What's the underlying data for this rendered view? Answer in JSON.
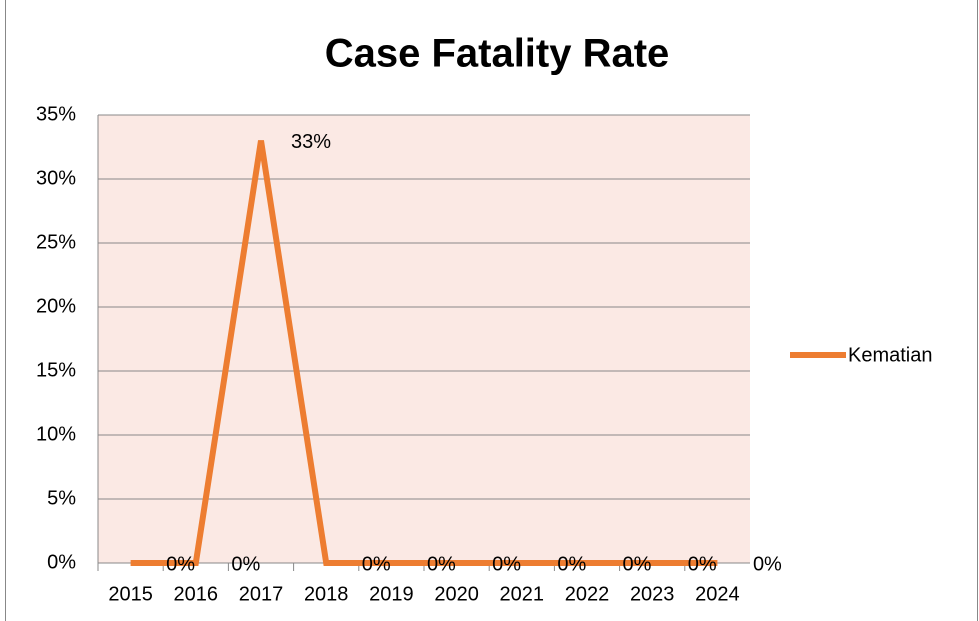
{
  "chart_data": {
    "type": "line",
    "title": "Case Fatality Rate",
    "categories": [
      "2015",
      "2016",
      "2017",
      "2018",
      "2019",
      "2020",
      "2021",
      "2022",
      "2023",
      "2024"
    ],
    "series": [
      {
        "name": "Kematian",
        "color": "#ed7d31",
        "values": [
          0,
          0,
          33,
          0,
          0,
          0,
          0,
          0,
          0,
          0
        ],
        "value_labels": [
          "0%",
          "0%",
          "33%",
          "0%",
          "0%",
          "0%",
          "0%",
          "0%",
          "0%",
          "0%"
        ]
      }
    ],
    "ylim": [
      0,
      35
    ],
    "yticks": [
      {
        "value": 0,
        "label": "0%"
      },
      {
        "value": 5,
        "label": "5%"
      },
      {
        "value": 10,
        "label": "10%"
      },
      {
        "value": 15,
        "label": "15%"
      },
      {
        "value": 20,
        "label": "20%"
      },
      {
        "value": 25,
        "label": "25%"
      },
      {
        "value": 30,
        "label": "30%"
      },
      {
        "value": 35,
        "label": "35%"
      }
    ],
    "grid": true,
    "legend": "right",
    "plot_background": "#fbe9e4"
  }
}
